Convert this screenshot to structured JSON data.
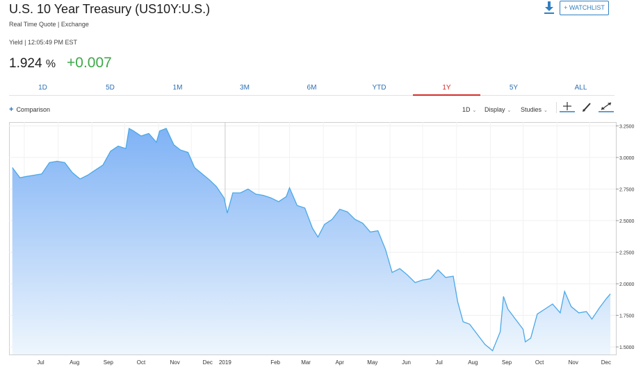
{
  "header": {
    "title": "U.S. 10 Year Treasury (US10Y:U.S.)",
    "subtitle": "Real Time Quote | Exchange",
    "yield_line": "Yield | 12:05:49 PM EST",
    "price": "1.924",
    "price_unit": "%",
    "change": "+0.007",
    "watchlist_label": "+ WATCHLIST"
  },
  "tabs": [
    {
      "label": "1D",
      "active": false
    },
    {
      "label": "5D",
      "active": false
    },
    {
      "label": "1M",
      "active": false
    },
    {
      "label": "3M",
      "active": false
    },
    {
      "label": "6M",
      "active": false
    },
    {
      "label": "YTD",
      "active": false
    },
    {
      "label": "1Y",
      "active": true
    },
    {
      "label": "5Y",
      "active": false
    },
    {
      "label": "ALL",
      "active": false
    }
  ],
  "toolbar": {
    "comparison_label": "Comparison",
    "interval_label": "1D",
    "display_label": "Display",
    "studies_label": "Studies"
  },
  "colors": {
    "accent": "#2f7fc1",
    "positive": "#3ea84a",
    "active_tab": "#d42b2b",
    "line": "#4aa8e8",
    "fill_top": "#7fb2f5",
    "fill_bottom": "#eef6fd"
  },
  "chart_data": {
    "type": "area",
    "x_tick_labels": [
      "Jul",
      "Aug",
      "Sep",
      "Oct",
      "Nov",
      "Dec",
      "2019",
      "Feb",
      "Mar",
      "Apr",
      "May",
      "Jun",
      "Jul",
      "Aug",
      "Sep",
      "Oct",
      "Nov",
      "Dec"
    ],
    "y_tick_labels": [
      "3.2500",
      "3.0000",
      "2.7500",
      "2.5000",
      "2.2500",
      "2.0000",
      "1.7500",
      "1.5000"
    ],
    "y_ticks": [
      3.25,
      3.0,
      2.75,
      2.5,
      2.25,
      2.0,
      1.75,
      1.5
    ],
    "ylim": [
      1.44,
      3.28
    ],
    "grid": true,
    "series": [
      {
        "x": [
          "2018-06-20",
          "2018-06-27",
          "2018-07-03",
          "2018-07-10",
          "2018-07-17",
          "2018-07-24",
          "2018-07-31",
          "2018-08-07",
          "2018-08-14",
          "2018-08-21",
          "2018-08-28",
          "2018-09-04",
          "2018-09-11",
          "2018-09-18",
          "2018-09-25",
          "2018-10-02",
          "2018-10-05",
          "2018-10-09",
          "2018-10-16",
          "2018-10-23",
          "2018-10-30",
          "2018-11-02",
          "2018-11-08",
          "2018-11-15",
          "2018-11-21",
          "2018-11-28",
          "2018-12-04",
          "2018-12-11",
          "2018-12-18",
          "2018-12-24",
          "2018-12-31",
          "2019-01-03",
          "2019-01-08",
          "2019-01-15",
          "2019-01-22",
          "2019-01-29",
          "2019-02-05",
          "2019-02-12",
          "2019-02-19",
          "2019-02-26",
          "2019-03-01",
          "2019-03-08",
          "2019-03-15",
          "2019-03-22",
          "2019-03-27",
          "2019-04-02",
          "2019-04-09",
          "2019-04-16",
          "2019-04-23",
          "2019-04-30",
          "2019-05-07",
          "2019-05-14",
          "2019-05-21",
          "2019-05-28",
          "2019-06-03",
          "2019-06-10",
          "2019-06-17",
          "2019-06-24",
          "2019-07-01",
          "2019-07-08",
          "2019-07-15",
          "2019-07-22",
          "2019-07-29",
          "2019-08-02",
          "2019-08-07",
          "2019-08-13",
          "2019-08-20",
          "2019-08-27",
          "2019-09-03",
          "2019-09-10",
          "2019-09-13",
          "2019-09-17",
          "2019-09-24",
          "2019-10-01",
          "2019-10-03",
          "2019-10-08",
          "2019-10-14",
          "2019-10-21",
          "2019-10-28",
          "2019-11-04",
          "2019-11-08",
          "2019-11-14",
          "2019-11-21",
          "2019-11-28",
          "2019-12-03",
          "2019-12-10",
          "2019-12-16",
          "2019-12-20"
        ],
        "values": [
          2.92,
          2.84,
          2.85,
          2.86,
          2.87,
          2.96,
          2.97,
          2.96,
          2.88,
          2.83,
          2.86,
          2.9,
          2.94,
          3.05,
          3.09,
          3.07,
          3.23,
          3.21,
          3.17,
          3.19,
          3.12,
          3.21,
          3.23,
          3.1,
          3.06,
          3.04,
          2.92,
          2.87,
          2.82,
          2.77,
          2.68,
          2.56,
          2.72,
          2.72,
          2.75,
          2.71,
          2.7,
          2.68,
          2.65,
          2.69,
          2.76,
          2.62,
          2.6,
          2.44,
          2.37,
          2.47,
          2.51,
          2.59,
          2.57,
          2.51,
          2.48,
          2.41,
          2.42,
          2.27,
          2.09,
          2.12,
          2.07,
          2.01,
          2.03,
          2.04,
          2.11,
          2.05,
          2.06,
          1.86,
          1.7,
          1.68,
          1.6,
          1.52,
          1.47,
          1.62,
          1.9,
          1.8,
          1.72,
          1.64,
          1.54,
          1.57,
          1.76,
          1.8,
          1.84,
          1.77,
          1.94,
          1.82,
          1.77,
          1.78,
          1.72,
          1.81,
          1.88,
          1.92
        ]
      }
    ]
  }
}
